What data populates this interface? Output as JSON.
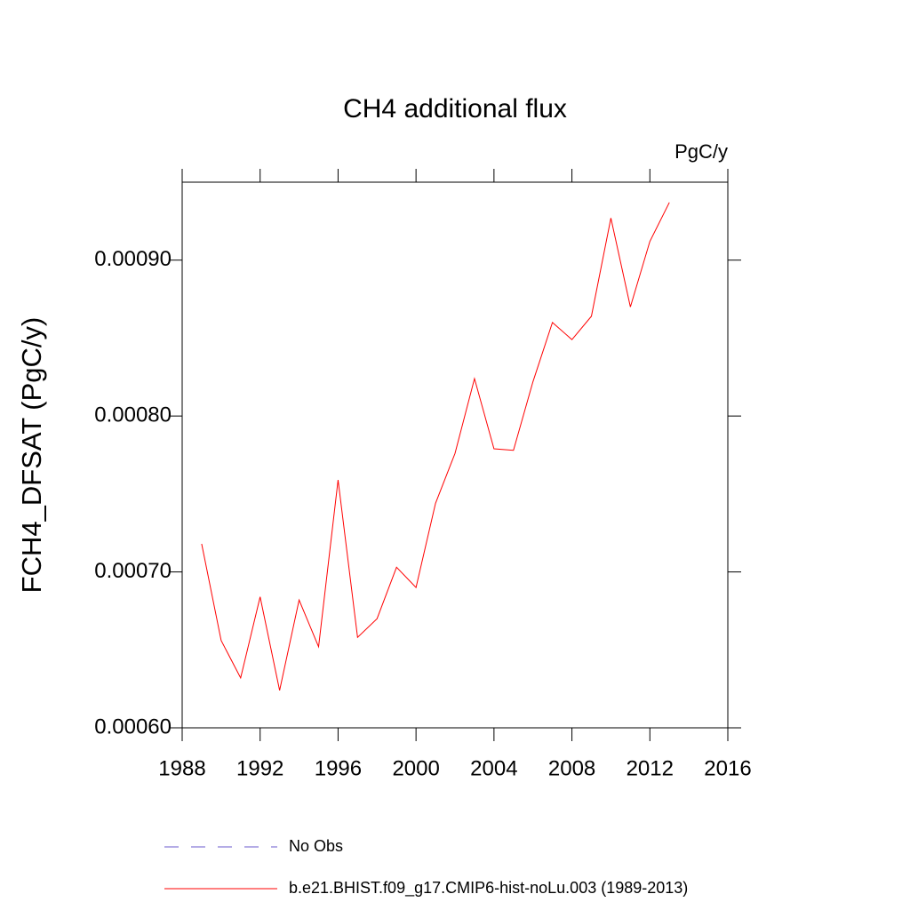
{
  "chart_data": {
    "type": "line",
    "title": "CH4 additional flux",
    "unit_label": "PgC/y",
    "y_label": "FCH4_DFSAT  (PgC/y)",
    "x": [
      1989,
      1990,
      1991,
      1992,
      1993,
      1994,
      1995,
      1996,
      1997,
      1998,
      1999,
      2000,
      2001,
      2002,
      2003,
      2004,
      2005,
      2006,
      2007,
      2008,
      2009,
      2010,
      2011,
      2012,
      2013
    ],
    "series": [
      {
        "name": "No Obs",
        "color": "#6a5acd",
        "dashed": true,
        "values": [
          null,
          null,
          null,
          null,
          null,
          null,
          null,
          null,
          null,
          null,
          null,
          null,
          null,
          null,
          null,
          null,
          null,
          null,
          null,
          null,
          null,
          null,
          null,
          null,
          null
        ]
      },
      {
        "name": "b.e21.BHIST.f09_g17.CMIP6-hist-noLu.003 (1989-2013)",
        "color": "#ff0000",
        "dashed": false,
        "values": [
          0.000718,
          0.000656,
          0.000632,
          0.000684,
          0.000624,
          0.000682,
          0.000652,
          0.000759,
          0.000658,
          0.00067,
          0.000703,
          0.00069,
          0.000744,
          0.000776,
          0.000824,
          0.000779,
          0.000778,
          0.000822,
          0.00086,
          0.000849,
          0.000864,
          0.000927,
          0.00087,
          0.000912,
          0.000937
        ]
      }
    ],
    "xlim": [
      1988,
      2016
    ],
    "xticks": [
      1988,
      1992,
      1996,
      2000,
      2004,
      2008,
      2012,
      2016
    ],
    "ylim": [
      0.0006,
      0.00095
    ],
    "yticks": [
      {
        "value": 0.0006,
        "label": "0.00060"
      },
      {
        "value": 0.0007,
        "label": "0.00070"
      },
      {
        "value": 0.0008,
        "label": "0.00080"
      },
      {
        "value": 0.0009,
        "label": "0.00090"
      }
    ],
    "grid": false
  }
}
